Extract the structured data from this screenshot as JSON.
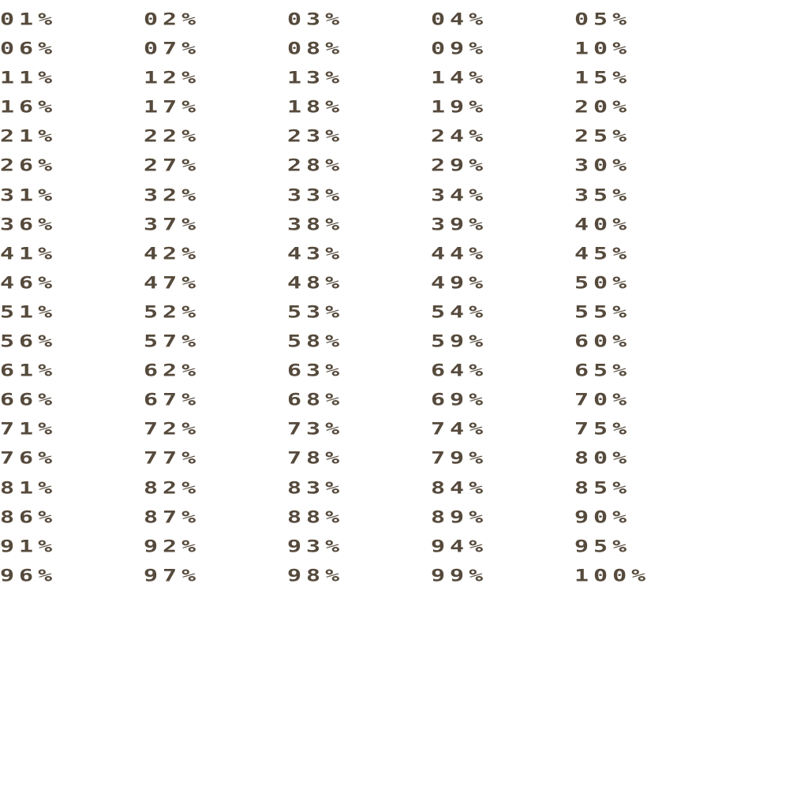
{
  "text_color": "#564a3c",
  "labels": [
    "01%",
    "02%",
    "03%",
    "04%",
    "05%",
    "06%",
    "07%",
    "08%",
    "09%",
    "10%",
    "11%",
    "12%",
    "13%",
    "14%",
    "15%",
    "16%",
    "17%",
    "18%",
    "19%",
    "20%",
    "21%",
    "22%",
    "23%",
    "24%",
    "25%",
    "26%",
    "27%",
    "28%",
    "29%",
    "30%",
    "31%",
    "32%",
    "33%",
    "34%",
    "35%",
    "36%",
    "37%",
    "38%",
    "39%",
    "40%",
    "41%",
    "42%",
    "43%",
    "44%",
    "45%",
    "46%",
    "47%",
    "48%",
    "49%",
    "50%",
    "51%",
    "52%",
    "53%",
    "54%",
    "55%",
    "56%",
    "57%",
    "58%",
    "59%",
    "60%",
    "61%",
    "62%",
    "63%",
    "64%",
    "65%",
    "66%",
    "67%",
    "68%",
    "69%",
    "70%",
    "71%",
    "72%",
    "73%",
    "74%",
    "75%",
    "76%",
    "77%",
    "78%",
    "79%",
    "80%",
    "81%",
    "82%",
    "83%",
    "84%",
    "85%",
    "86%",
    "87%",
    "88%",
    "89%",
    "90%",
    "91%",
    "92%",
    "93%",
    "94%",
    "95%",
    "96%",
    "97%",
    "98%",
    "99%",
    "100%"
  ]
}
